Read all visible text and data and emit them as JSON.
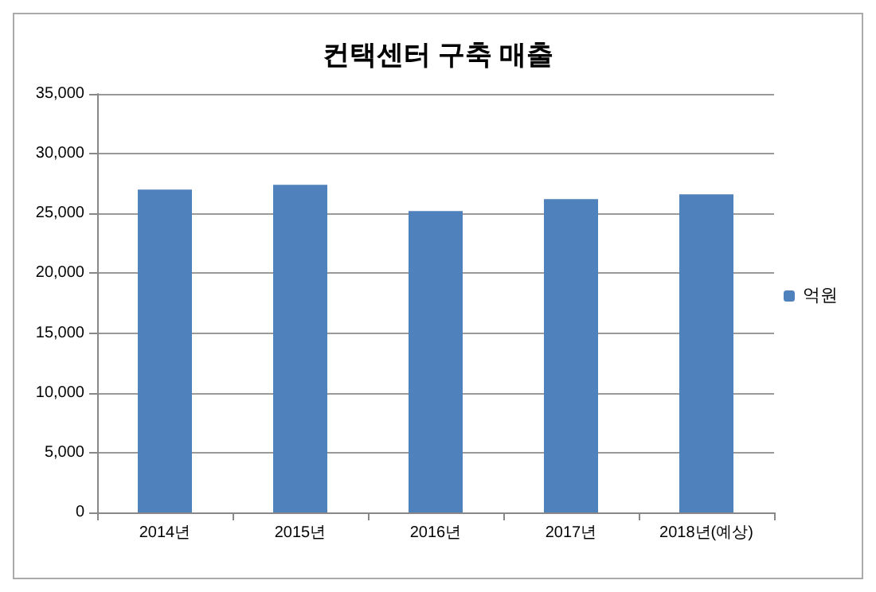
{
  "chart_data": {
    "type": "bar",
    "title": "컨택센터 구축 매출",
    "categories": [
      "2014년",
      "2015년",
      "2016년",
      "2017년",
      "2018년(예상)"
    ],
    "series": [
      {
        "name": "억원",
        "color": "#4f81bd",
        "values": [
          27000,
          27400,
          25200,
          26200,
          26600
        ]
      }
    ],
    "ylim": [
      0,
      35000
    ],
    "yticks": [
      0,
      {
        "value": 5000,
        "label": "5,000"
      },
      {
        "value": 10000,
        "label": "10,000"
      },
      {
        "value": 15000,
        "label": "15,000"
      },
      {
        "value": 20000,
        "label": "20,000"
      },
      {
        "value": 25000,
        "label": "25,000"
      },
      {
        "value": 30000,
        "label": "30,000"
      },
      {
        "value": 35000,
        "label": "35,000"
      }
    ],
    "grid": "y",
    "legend": "right"
  }
}
